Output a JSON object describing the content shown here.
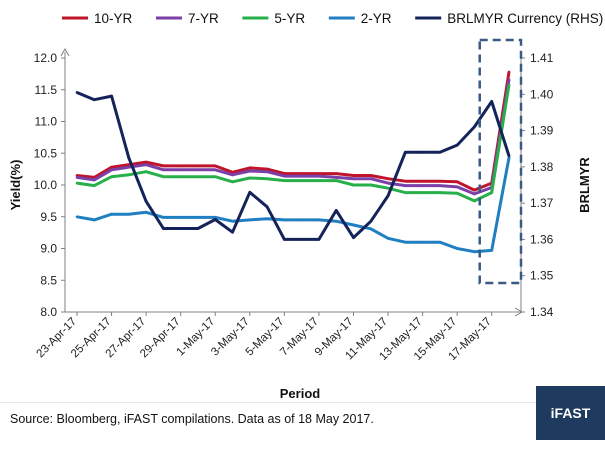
{
  "chart_data": {
    "type": "line",
    "xlabel": "Period",
    "ylabel": "Yield(%)",
    "y2label": "BRLMYR",
    "ylim": [
      8.0,
      12.0
    ],
    "y2lim": [
      1.34,
      1.41
    ],
    "yticks": [
      "8.0",
      "8.5",
      "9.0",
      "9.5",
      "10.0",
      "10.5",
      "11.0",
      "11.5",
      "12.0"
    ],
    "y2ticks": [
      "1.34",
      "1.35",
      "1.36",
      "1.37",
      "1.38",
      "1.39",
      "1.40",
      "1.41"
    ],
    "x": [
      "23-Apr-17",
      "24-Apr-17",
      "25-Apr-17",
      "26-Apr-17",
      "27-Apr-17",
      "28-Apr-17",
      "29-Apr-17",
      "30-Apr-17",
      "1-May-17",
      "2-May-17",
      "3-May-17",
      "4-May-17",
      "5-May-17",
      "6-May-17",
      "7-May-17",
      "8-May-17",
      "9-May-17",
      "10-May-17",
      "11-May-17",
      "12-May-17",
      "13-May-17",
      "14-May-17",
      "15-May-17",
      "16-May-17",
      "17-May-17",
      "18-May-17"
    ],
    "xtick_labels": [
      "23-Apr-17",
      "25-Apr-17",
      "27-Apr-17",
      "29-Apr-17",
      "1-May-17",
      "3-May-17",
      "5-May-17",
      "7-May-17",
      "9-May-17",
      "11-May-17",
      "13-May-17",
      "15-May-17",
      "17-May-17"
    ],
    "legend_position": "top",
    "grid": false,
    "series": [
      {
        "name": "10-YR",
        "axis": "left",
        "color": "#c0142a",
        "values": [
          10.15,
          10.12,
          10.28,
          10.32,
          10.36,
          10.3,
          10.3,
          10.3,
          10.3,
          10.2,
          10.27,
          10.25,
          10.18,
          10.18,
          10.18,
          10.18,
          10.15,
          10.15,
          10.1,
          10.06,
          10.06,
          10.06,
          10.05,
          9.92,
          10.03,
          11.78
        ]
      },
      {
        "name": "7-YR",
        "axis": "left",
        "color": "#7b3fa8",
        "values": [
          10.12,
          10.08,
          10.24,
          10.28,
          10.32,
          10.24,
          10.24,
          10.24,
          10.24,
          10.16,
          10.22,
          10.21,
          10.14,
          10.14,
          10.14,
          10.12,
          10.1,
          10.1,
          10.03,
          9.99,
          9.99,
          9.99,
          9.97,
          9.86,
          9.96,
          11.66
        ]
      },
      {
        "name": "5-YR",
        "axis": "left",
        "color": "#27b04a",
        "values": [
          10.03,
          9.99,
          10.13,
          10.16,
          10.21,
          10.13,
          10.13,
          10.13,
          10.13,
          10.05,
          10.11,
          10.1,
          10.07,
          10.07,
          10.07,
          10.07,
          10.0,
          10.0,
          9.95,
          9.88,
          9.88,
          9.88,
          9.87,
          9.75,
          9.88,
          11.58
        ]
      },
      {
        "name": "2-YR",
        "axis": "left",
        "color": "#1f7fc1",
        "values": [
          9.5,
          9.45,
          9.54,
          9.54,
          9.57,
          9.49,
          9.49,
          9.49,
          9.49,
          9.43,
          9.45,
          9.47,
          9.45,
          9.45,
          9.45,
          9.43,
          9.37,
          9.31,
          9.16,
          9.1,
          9.1,
          9.1,
          9.0,
          8.95,
          8.97,
          10.43
        ]
      },
      {
        "name": "BRLMYR Currency (RHS)",
        "axis": "right",
        "color": "#14235a",
        "values": [
          1.4005,
          1.3985,
          1.3995,
          1.3825,
          1.3705,
          1.363,
          1.363,
          1.363,
          1.3655,
          1.362,
          1.373,
          1.369,
          1.36,
          1.36,
          1.36,
          1.368,
          1.3605,
          1.365,
          1.372,
          1.384,
          1.384,
          1.384,
          1.386,
          1.391,
          1.398,
          1.383
        ]
      }
    ],
    "annotation": {
      "type": "dashed-box",
      "x_from": "17-May-17",
      "x_to": "18-May-17"
    }
  },
  "footer": {
    "source": "Source: Bloomberg, iFAST compilations. Data as of 18 May 2017.",
    "logo": "iFAST"
  },
  "colors": {
    "axis": "#808080",
    "logo_bg": "#1f3a5f",
    "annotation": "#3a5a86"
  }
}
